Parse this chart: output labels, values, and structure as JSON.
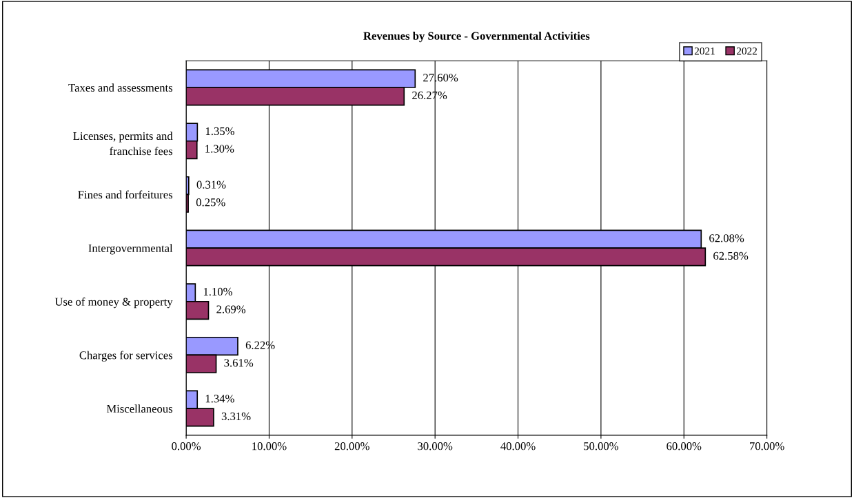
{
  "chart_data": {
    "type": "bar",
    "orientation": "horizontal",
    "title": "Revenues by Source - Governmental Activities",
    "categories": [
      "Taxes and assessments",
      "Licenses, permits and\nfranchise fees",
      "Fines and forfeitures",
      "Intergovernmental",
      "Use of money & property",
      "Charges for services",
      "Miscellaneous"
    ],
    "series": [
      {
        "name": "2021",
        "color": "#9999ff",
        "values": [
          27.6,
          1.35,
          0.31,
          62.08,
          1.1,
          6.22,
          1.34
        ],
        "value_labels": [
          "27.60%",
          "1.35%",
          "0.31%",
          "62.08%",
          "1.10%",
          "6.22%",
          "1.34%"
        ]
      },
      {
        "name": "2022",
        "color": "#993366",
        "values": [
          26.27,
          1.3,
          0.25,
          62.58,
          2.69,
          3.61,
          3.31
        ],
        "value_labels": [
          "26.27%",
          "1.30%",
          "0.25%",
          "62.58%",
          "2.69%",
          "3.61%",
          "3.31%"
        ]
      }
    ],
    "xlim": [
      0,
      70
    ],
    "xticks": [
      {
        "value": 0,
        "label": "0.00%"
      },
      {
        "value": 10,
        "label": "10.00%"
      },
      {
        "value": 20,
        "label": "20.00%"
      },
      {
        "value": 30,
        "label": "30.00%"
      },
      {
        "value": 40,
        "label": "40.00%"
      },
      {
        "value": 50,
        "label": "50.00%"
      },
      {
        "value": 60,
        "label": "60.00%"
      },
      {
        "value": 70,
        "label": "70.00%"
      }
    ],
    "grid": "x",
    "legend": "top right"
  }
}
